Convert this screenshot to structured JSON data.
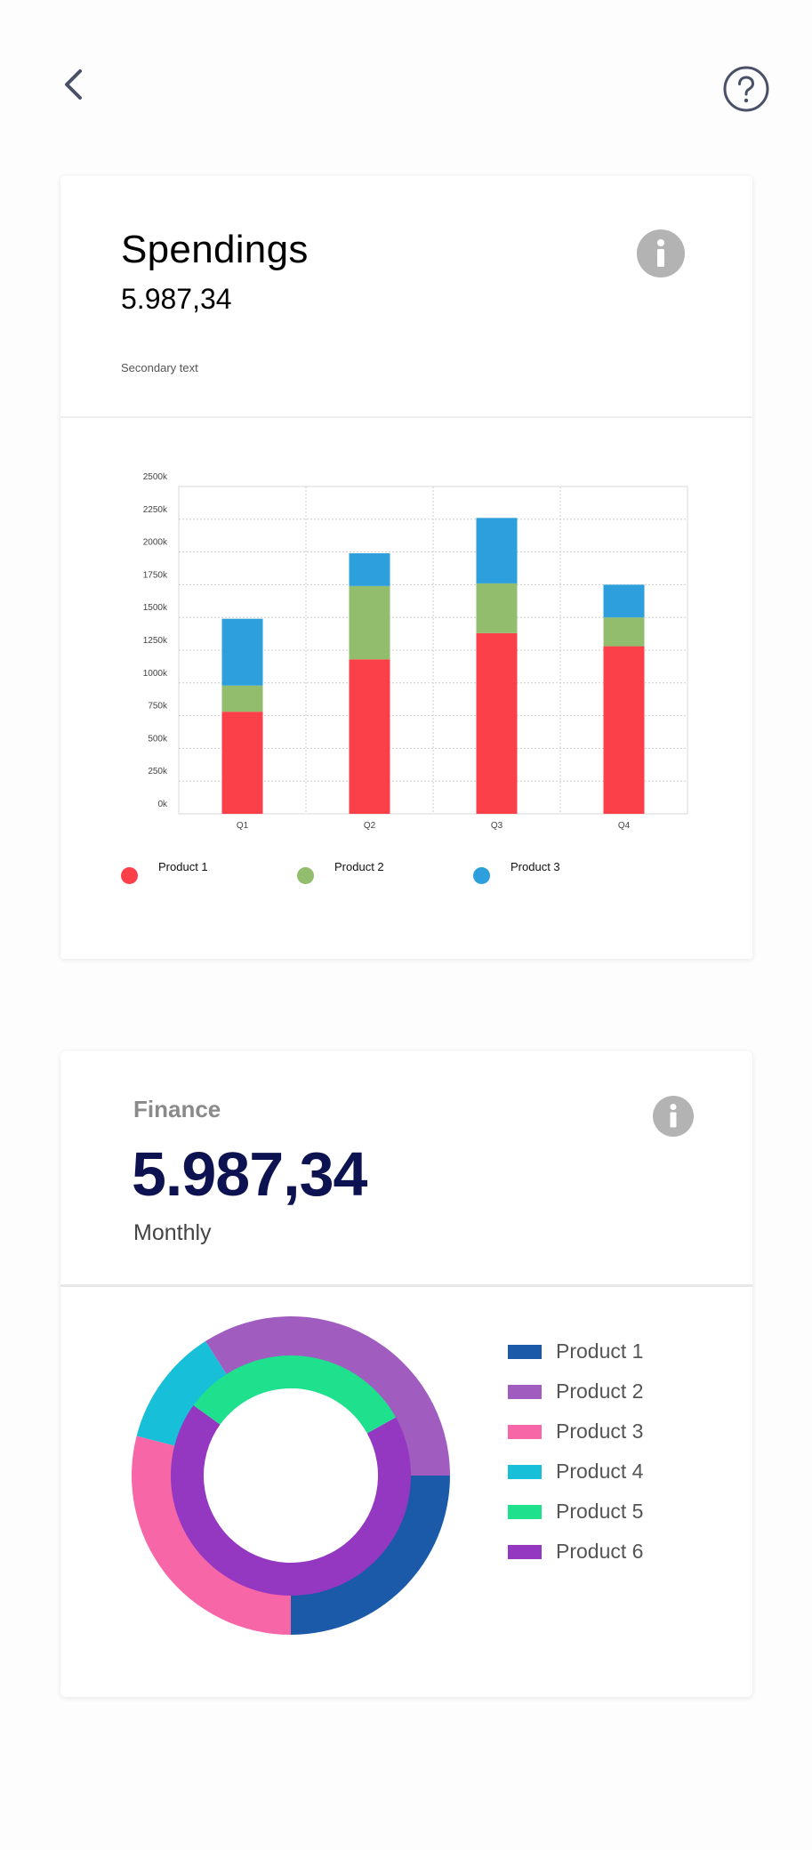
{
  "icons": {
    "back": "chevron-left-icon",
    "help": "question-circle-icon",
    "info": "info-circle-icon"
  },
  "colors": {
    "icon_dark": "#4a5068",
    "info_grey": "#b3b3b3",
    "product1": "#fc4049",
    "product2": "#91bd6d",
    "product3": "#2d9fdc",
    "finance_value": "#0d1250"
  },
  "spendings": {
    "title": "Spendings",
    "value": "5.987,34",
    "secondary": "Secondary text",
    "legend": [
      {
        "label": "Product 1",
        "color": "#fc4049"
      },
      {
        "label": "Product 2",
        "color": "#91bd6d"
      },
      {
        "label": "Product 3",
        "color": "#2d9fdc"
      }
    ]
  },
  "finance": {
    "label": "Finance",
    "value": "5.987,34",
    "period": "Monthly",
    "legend": [
      {
        "label": "Product 1",
        "color": "#1a5aa8"
      },
      {
        "label": "Product 2",
        "color": "#a05cbf"
      },
      {
        "label": "Product 3",
        "color": "#f766a6"
      },
      {
        "label": "Product 4",
        "color": "#17bfd8"
      },
      {
        "label": "Product 5",
        "color": "#1ee08d"
      },
      {
        "label": "Product 6",
        "color": "#9438c2"
      }
    ]
  },
  "chart_data": [
    {
      "type": "bar",
      "stacked": true,
      "title": "Spendings",
      "categories": [
        "Q1",
        "Q2",
        "Q3",
        "Q4"
      ],
      "y_ticks": [
        "0k",
        "250k",
        "500k",
        "750k",
        "1000k",
        "1250k",
        "1500k",
        "1750k",
        "2000k",
        "2250k",
        "2500k"
      ],
      "ylim": [
        0,
        2500
      ],
      "grid": true,
      "series": [
        {
          "name": "Product 1",
          "color": "#fc4049",
          "values": [
            780,
            1180,
            1380,
            1280
          ]
        },
        {
          "name": "Product 2",
          "color": "#91bd6d",
          "values": [
            200,
            560,
            380,
            220
          ]
        },
        {
          "name": "Product 3",
          "color": "#2d9fdc",
          "values": [
            510,
            250,
            500,
            250
          ]
        }
      ]
    },
    {
      "type": "pie",
      "variant": "nested-donut",
      "title": "Finance",
      "outer_ring": [
        {
          "name": "Product 1",
          "color": "#1a5aa8",
          "value": 25
        },
        {
          "name": "Product 3",
          "color": "#f766a6",
          "value": 29
        },
        {
          "name": "Product 4",
          "color": "#17bfd8",
          "value": 12
        },
        {
          "name": "Product 2",
          "color": "#a05cbf",
          "value": 34
        }
      ],
      "inner_ring": [
        {
          "name": "Product 6",
          "color": "#9438c2",
          "value": 68
        },
        {
          "name": "Product 5",
          "color": "#1ee08d",
          "value": 32
        }
      ]
    }
  ]
}
